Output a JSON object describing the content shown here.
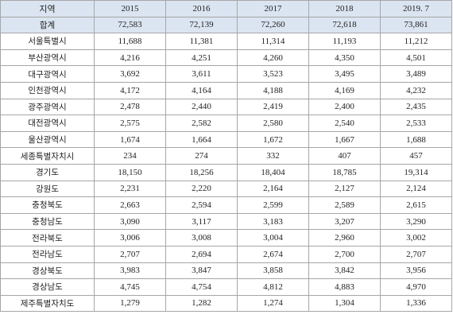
{
  "table": {
    "header": [
      "지역",
      "2015",
      "2016",
      "2017",
      "2018",
      "2019. 7"
    ],
    "rows": [
      [
        "합계",
        "72,583",
        "72,139",
        "72,260",
        "72,618",
        "73,861"
      ],
      [
        "서울특별시",
        "11,688",
        "11,381",
        "11,314",
        "11,193",
        "11,212"
      ],
      [
        "부산광역시",
        "4,216",
        "4,251",
        "4,260",
        "4,350",
        "4,501"
      ],
      [
        "대구광역시",
        "3,692",
        "3,611",
        "3,523",
        "3,495",
        "3,489"
      ],
      [
        "인천광역시",
        "4,172",
        "4,164",
        "4,188",
        "4,169",
        "4,232"
      ],
      [
        "광주광역시",
        "2,478",
        "2,440",
        "2,419",
        "2,400",
        "2,435"
      ],
      [
        "대전광역시",
        "2,575",
        "2,582",
        "2,580",
        "2,540",
        "2,533"
      ],
      [
        "울산광역시",
        "1,674",
        "1,664",
        "1,672",
        "1,667",
        "1,688"
      ],
      [
        "세종특별자치시",
        "234",
        "274",
        "332",
        "407",
        "457"
      ],
      [
        "경기도",
        "18,150",
        "18,256",
        "18,404",
        "18,785",
        "19,314"
      ],
      [
        "강원도",
        "2,231",
        "2,220",
        "2,164",
        "2,127",
        "2,124"
      ],
      [
        "충청북도",
        "2,663",
        "2,594",
        "2,599",
        "2,589",
        "2,615"
      ],
      [
        "충청남도",
        "3,090",
        "3,117",
        "3,183",
        "3,207",
        "3,290"
      ],
      [
        "전라북도",
        "3,006",
        "3,008",
        "3,004",
        "2,960",
        "3,002"
      ],
      [
        "전라남도",
        "2,707",
        "2,694",
        "2,674",
        "2,700",
        "2,707"
      ],
      [
        "경상북도",
        "3,983",
        "3,847",
        "3,858",
        "3,842",
        "3,956"
      ],
      [
        "경상남도",
        "4,745",
        "4,754",
        "4,812",
        "4,883",
        "4,970"
      ],
      [
        "제주특별자치도",
        "1,279",
        "1,282",
        "1,274",
        "1,304",
        "1,336"
      ]
    ]
  }
}
